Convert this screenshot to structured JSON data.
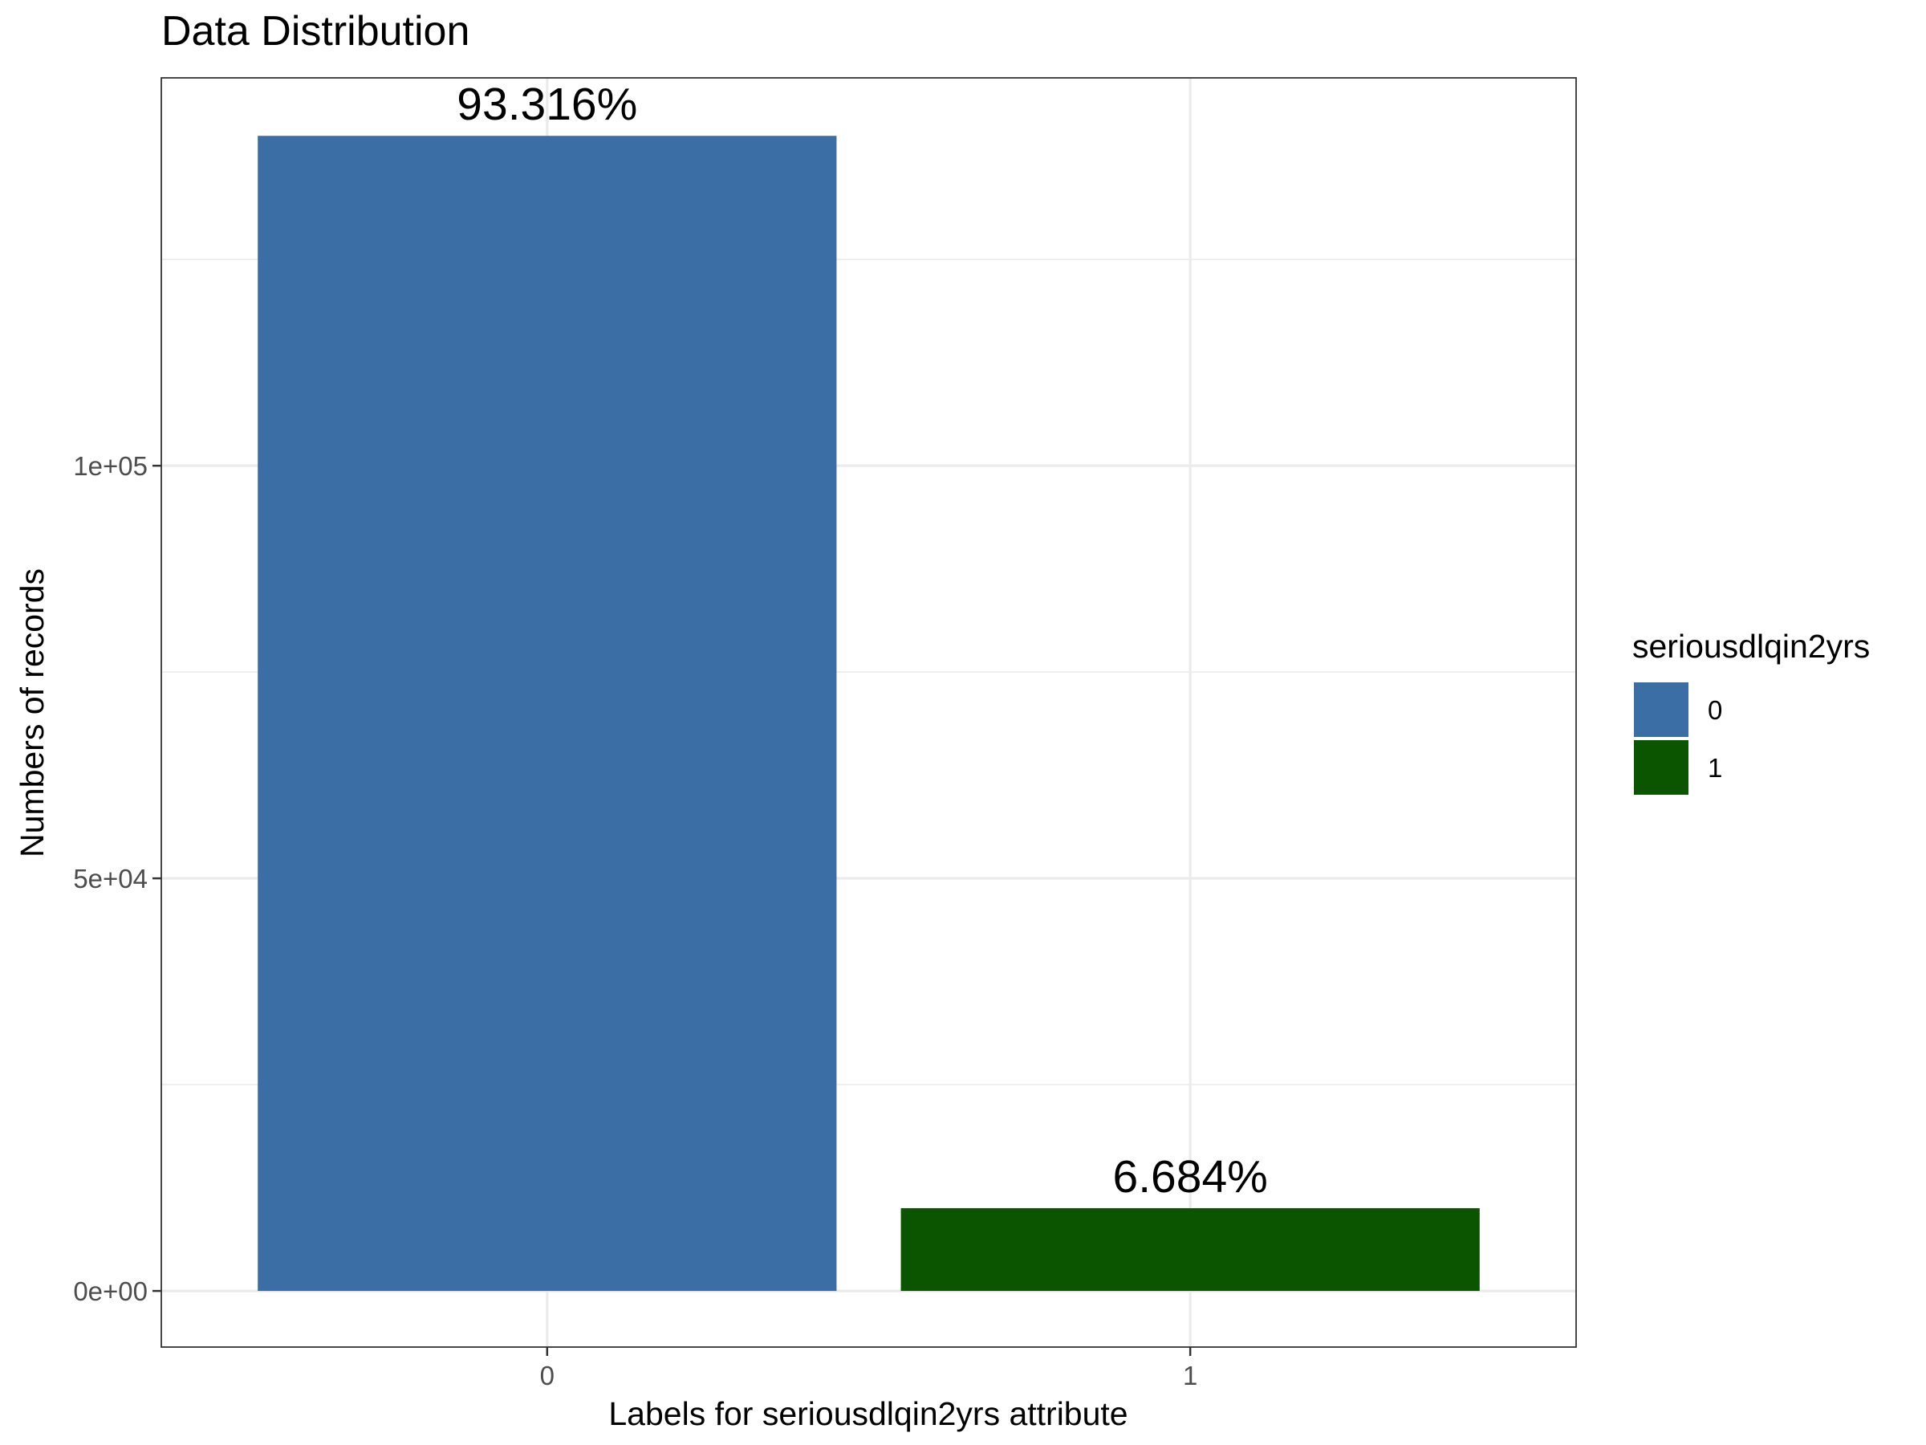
{
  "chart_data": {
    "type": "bar",
    "title": "Data Distribution",
    "xlabel": "Labels for seriousdlqin2yrs attribute",
    "ylabel": "Numbers of records",
    "categories": [
      "0",
      "1"
    ],
    "values": [
      139974,
      10026
    ],
    "bar_labels": [
      "93.316%",
      "6.684%"
    ],
    "colors": [
      "#3A6EA5",
      "#0C5500"
    ],
    "ylim": [
      -6800,
      147000
    ],
    "yticks": [
      {
        "value": 0,
        "label": "0e+00"
      },
      {
        "value": 50000,
        "label": "5e+04"
      },
      {
        "value": 100000,
        "label": "1e+05"
      }
    ],
    "minor_grid": [
      25000,
      75000,
      125000
    ],
    "grid": true,
    "legend": {
      "title": "seriousdlqin2yrs",
      "position": "right",
      "entries": [
        {
          "label": "0",
          "color": "#3A6EA5"
        },
        {
          "label": "1",
          "color": "#0C5500"
        }
      ]
    }
  }
}
